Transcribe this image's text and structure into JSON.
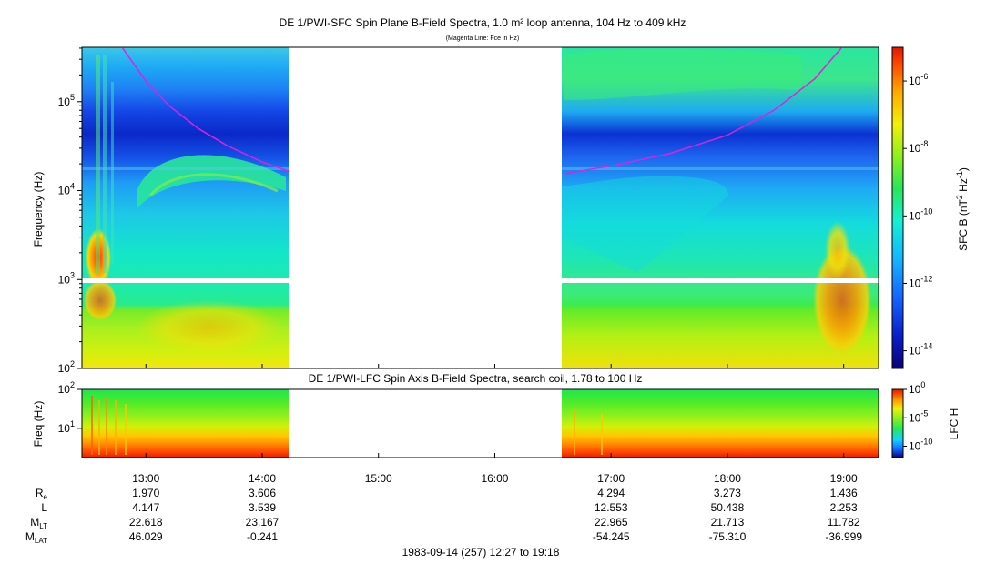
{
  "chart_data": [
    {
      "type": "heatmap",
      "title": "DE 1/PWI-SFC  Spin Plane B-Field Spectra, 1.0 m² loop antenna, 104 Hz to 409 kHz",
      "subtitle": "(Magenta Line: Fce in Hz)",
      "ylabel": "Frequency (Hz)",
      "yscale": "log",
      "ylim": [
        100,
        409000
      ],
      "yticks": [
        {
          "base": "10",
          "exp": "2",
          "value": 100
        },
        {
          "base": "10",
          "exp": "3",
          "value": 1000
        },
        {
          "base": "10",
          "exp": "4",
          "value": 10000
        },
        {
          "base": "10",
          "exp": "5",
          "value": 100000
        }
      ],
      "xlim_hours": [
        12.45,
        19.3
      ],
      "data_gap_hours": [
        14.25,
        16.58
      ],
      "band_split_hz": 1000,
      "colorbar": {
        "label_pre": "SFC B (nT",
        "label_sup1": "2",
        "label_mid": " Hz",
        "label_sup2": "-1",
        "label_post": ")",
        "scale": "log",
        "range": [
          3e-15,
          1e-05
        ],
        "ticks": [
          {
            "base": "10",
            "exp": "-6",
            "value": 1e-06
          },
          {
            "base": "10",
            "exp": "-8",
            "value": 1e-08
          },
          {
            "base": "10",
            "exp": "-10",
            "value": 1e-10
          },
          {
            "base": "10",
            "exp": "-12",
            "value": 1e-12
          },
          {
            "base": "10",
            "exp": "-14",
            "value": 1e-14
          }
        ]
      },
      "fce_line_color": "#dd22dd",
      "fce_hz": [
        {
          "t": 12.8,
          "f": 400000
        },
        {
          "t": 13.0,
          "f": 170000
        },
        {
          "t": 13.2,
          "f": 90000
        },
        {
          "t": 13.45,
          "f": 50000
        },
        {
          "t": 13.7,
          "f": 32000
        },
        {
          "t": 14.0,
          "f": 21000
        },
        {
          "t": 14.23,
          "f": 16500
        },
        {
          "t": 16.6,
          "f": 15500
        },
        {
          "t": 17.0,
          "f": 19000
        },
        {
          "t": 17.5,
          "f": 26000
        },
        {
          "t": 18.0,
          "f": 42000
        },
        {
          "t": 18.4,
          "f": 80000
        },
        {
          "t": 18.75,
          "f": 180000
        },
        {
          "t": 18.98,
          "f": 400000
        }
      ]
    },
    {
      "type": "heatmap",
      "title": "DE 1/PWI-LFC  Spin Axis B-Field Spectra, search coil, 1.78 to 100 Hz",
      "ylabel": "Freq (Hz)",
      "yscale": "log",
      "ylim": [
        1.78,
        100
      ],
      "yticks": [
        {
          "base": "10",
          "exp": "1",
          "value": 10
        },
        {
          "base": "10",
          "exp": "2",
          "value": 100
        }
      ],
      "colorbar": {
        "label": "LFC H",
        "scale": "log",
        "range": [
          1e-12,
          1
        ],
        "ticks": [
          {
            "base": "10",
            "exp": "0",
            "value": 1
          },
          {
            "base": "10",
            "exp": "-5",
            "value": 1e-05
          },
          {
            "base": "10",
            "exp": "-10",
            "value": 1e-10
          }
        ]
      }
    }
  ],
  "xaxis": {
    "ticks": [
      {
        "label": "13:00",
        "hours": 13
      },
      {
        "label": "14:00",
        "hours": 14
      },
      {
        "label": "15:00",
        "hours": 15
      },
      {
        "label": "16:00",
        "hours": 16
      },
      {
        "label": "17:00",
        "hours": 17
      },
      {
        "label": "18:00",
        "hours": 18
      },
      {
        "label": "19:00",
        "hours": 19
      }
    ]
  },
  "ephemeris": {
    "rows": [
      {
        "label": "R",
        "sub": "e",
        "values": [
          "1.970",
          "3.606",
          "",
          "",
          "4.294",
          "3.273",
          "1.436"
        ]
      },
      {
        "label": "L",
        "sub": "",
        "values": [
          "4.147",
          "3.539",
          "",
          "",
          "12.553",
          "50.438",
          "2.253"
        ]
      },
      {
        "label": "M",
        "sub": "LT",
        "values": [
          "22.618",
          "23.167",
          "",
          "",
          "22.965",
          "21.713",
          "11.782"
        ]
      },
      {
        "label": "M",
        "sub": "LAT",
        "values": [
          "46.029",
          "-0.241",
          "",
          "",
          "-54.245",
          "-75.310",
          "-36.999"
        ]
      }
    ]
  },
  "footer": "1983-09-14 (257) 12:27 to 19:18"
}
